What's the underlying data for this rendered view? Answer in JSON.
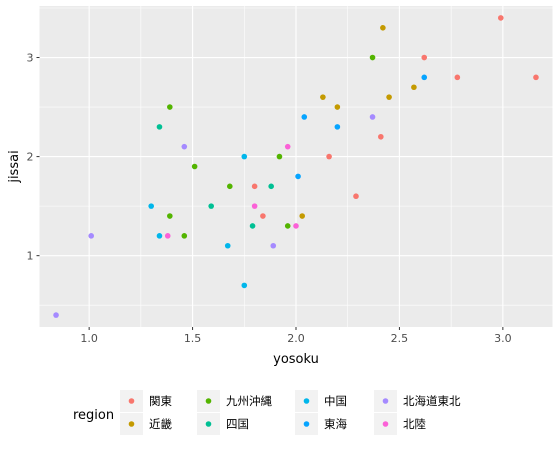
{
  "chart_data": {
    "type": "scatter",
    "title": "",
    "xlabel": "yosoku",
    "ylabel": "jissai",
    "xlim": [
      0.76,
      3.24
    ],
    "ylim": [
      0.28,
      3.52
    ],
    "xticks": [
      1.0,
      1.5,
      2.0,
      2.5,
      3.0
    ],
    "xtick_labels": [
      "1.0",
      "1.5",
      "2.0",
      "2.5",
      "3.0"
    ],
    "yticks": [
      1,
      2,
      3
    ],
    "ytick_labels": [
      "1",
      "2",
      "3"
    ],
    "grid": true,
    "background": "#ebebeb",
    "legend": {
      "title": "region",
      "position": "bottom",
      "columns": [
        [
          "関東",
          "近畿"
        ],
        [
          "九州沖縄",
          "四国"
        ],
        [
          "中国",
          "東海"
        ],
        [
          "北海道東北",
          "北陸"
        ]
      ]
    },
    "series": [
      {
        "name": "関東",
        "color": "#F8766D",
        "points": [
          {
            "x": 2.99,
            "y": 3.4
          },
          {
            "x": 3.16,
            "y": 2.8
          },
          {
            "x": 2.78,
            "y": 2.8
          },
          {
            "x": 2.62,
            "y": 3.0
          },
          {
            "x": 2.41,
            "y": 2.2
          },
          {
            "x": 2.16,
            "y": 2.0
          },
          {
            "x": 2.29,
            "y": 1.6
          },
          {
            "x": 1.8,
            "y": 1.7
          },
          {
            "x": 1.84,
            "y": 1.4
          }
        ]
      },
      {
        "name": "近畿",
        "color": "#C49A00",
        "points": [
          {
            "x": 2.42,
            "y": 3.3
          },
          {
            "x": 2.57,
            "y": 2.7
          },
          {
            "x": 2.45,
            "y": 2.6
          },
          {
            "x": 2.13,
            "y": 2.6
          },
          {
            "x": 2.2,
            "y": 2.5
          },
          {
            "x": 2.03,
            "y": 1.4
          }
        ]
      },
      {
        "name": "九州沖縄",
        "color": "#53B400",
        "points": [
          {
            "x": 2.37,
            "y": 3.0
          },
          {
            "x": 1.39,
            "y": 2.5
          },
          {
            "x": 1.92,
            "y": 2.0
          },
          {
            "x": 1.51,
            "y": 1.9
          },
          {
            "x": 1.68,
            "y": 1.7
          },
          {
            "x": 1.39,
            "y": 1.4
          },
          {
            "x": 1.46,
            "y": 1.2
          },
          {
            "x": 1.96,
            "y": 1.3
          }
        ]
      },
      {
        "name": "四国",
        "color": "#00C094",
        "points": [
          {
            "x": 1.34,
            "y": 2.3
          },
          {
            "x": 1.88,
            "y": 1.7
          },
          {
            "x": 1.59,
            "y": 1.5
          },
          {
            "x": 1.79,
            "y": 1.3
          }
        ]
      },
      {
        "name": "中国",
        "color": "#00B6EB",
        "points": [
          {
            "x": 1.75,
            "y": 2.0
          },
          {
            "x": 1.3,
            "y": 1.5
          },
          {
            "x": 1.34,
            "y": 1.2
          },
          {
            "x": 1.67,
            "y": 1.1
          },
          {
            "x": 1.75,
            "y": 0.7
          }
        ]
      },
      {
        "name": "東海",
        "color": "#06A4FF",
        "points": [
          {
            "x": 2.62,
            "y": 2.8
          },
          {
            "x": 2.04,
            "y": 2.4
          },
          {
            "x": 2.2,
            "y": 2.3
          },
          {
            "x": 2.01,
            "y": 1.8
          }
        ]
      },
      {
        "name": "北海道東北",
        "color": "#A58AFF",
        "points": [
          {
            "x": 2.37,
            "y": 2.4
          },
          {
            "x": 1.46,
            "y": 2.1
          },
          {
            "x": 1.01,
            "y": 1.2
          },
          {
            "x": 1.89,
            "y": 1.1
          },
          {
            "x": 0.84,
            "y": 0.4
          }
        ]
      },
      {
        "name": "北陸",
        "color": "#FB61D7",
        "points": [
          {
            "x": 1.96,
            "y": 2.1
          },
          {
            "x": 1.8,
            "y": 1.5
          },
          {
            "x": 2.0,
            "y": 1.3
          },
          {
            "x": 1.38,
            "y": 1.2
          }
        ]
      }
    ]
  }
}
